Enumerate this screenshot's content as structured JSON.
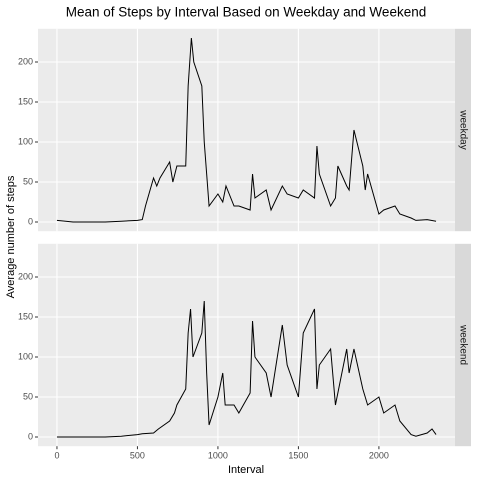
{
  "chart_data": {
    "type": "line",
    "title": "Mean of Steps by Interval Based on Weekday and Weekend",
    "xlabel": "Interval",
    "ylabel": "Average number of steps",
    "xlim": [
      -117.75,
      2472.75
    ],
    "xticks": [
      0,
      500,
      1000,
      1500,
      2000
    ],
    "ylim": [
      -11.5,
      241.5
    ],
    "yticks": [
      0,
      50,
      100,
      150,
      200
    ],
    "grid": true,
    "series": [
      {
        "name": "weekday",
        "color": "#000000",
        "x": [
          0,
          100,
          200,
          300,
          400,
          500,
          530,
          550,
          600,
          620,
          640,
          700,
          720,
          745,
          800,
          815,
          835,
          850,
          900,
          915,
          930,
          945,
          1000,
          1030,
          1050,
          1100,
          1130,
          1200,
          1215,
          1230,
          1300,
          1330,
          1400,
          1430,
          1500,
          1530,
          1600,
          1615,
          1630,
          1700,
          1730,
          1745,
          1800,
          1815,
          1845,
          1900,
          1915,
          1930,
          2000,
          2030,
          2100,
          2130,
          2200,
          2230,
          2300,
          2355
        ],
        "values": [
          2,
          0,
          0,
          0,
          1,
          2,
          3,
          20,
          55,
          45,
          55,
          75,
          50,
          70,
          70,
          170,
          230,
          200,
          170,
          100,
          60,
          20,
          35,
          25,
          45,
          20,
          20,
          15,
          60,
          30,
          40,
          15,
          45,
          35,
          30,
          40,
          30,
          95,
          60,
          20,
          30,
          70,
          45,
          40,
          115,
          70,
          40,
          60,
          10,
          15,
          20,
          10,
          5,
          2,
          3,
          1
        ]
      },
      {
        "name": "weekend",
        "color": "#000000",
        "x": [
          0,
          100,
          200,
          300,
          400,
          500,
          530,
          600,
          630,
          700,
          730,
          745,
          800,
          815,
          830,
          845,
          900,
          915,
          930,
          945,
          1000,
          1030,
          1045,
          1100,
          1130,
          1200,
          1215,
          1230,
          1300,
          1330,
          1400,
          1430,
          1500,
          1530,
          1600,
          1615,
          1630,
          1700,
          1730,
          1800,
          1815,
          1845,
          1900,
          1930,
          2000,
          2030,
          2100,
          2130,
          2200,
          2230,
          2300,
          2330,
          2355
        ],
        "values": [
          0,
          0,
          0,
          0,
          1,
          3,
          4,
          5,
          10,
          20,
          30,
          40,
          60,
          130,
          160,
          100,
          130,
          170,
          80,
          15,
          50,
          80,
          40,
          40,
          30,
          55,
          145,
          100,
          80,
          50,
          140,
          90,
          50,
          130,
          160,
          60,
          90,
          110,
          40,
          110,
          80,
          110,
          60,
          40,
          50,
          30,
          40,
          20,
          3,
          1,
          5,
          10,
          3
        ]
      }
    ]
  }
}
